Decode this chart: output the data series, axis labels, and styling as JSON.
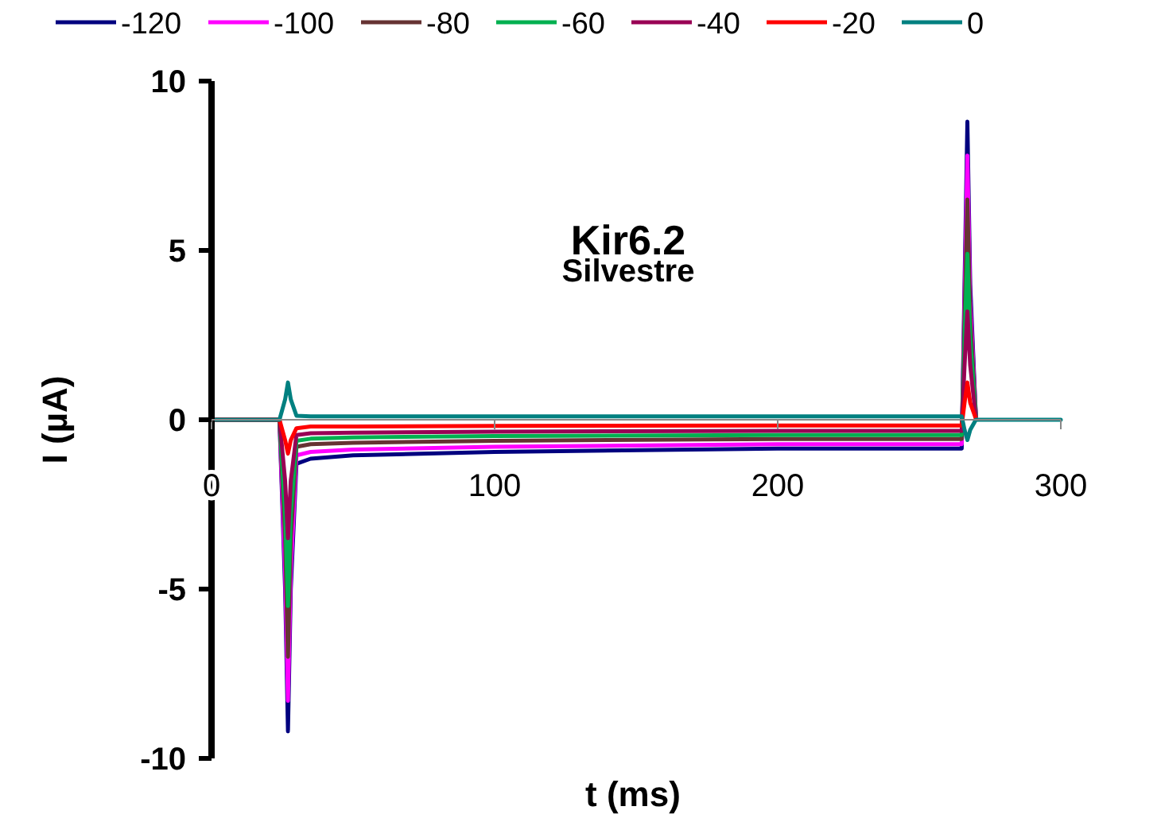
{
  "chart_data": {
    "type": "line",
    "title": "Kir6.2",
    "subtitle": "Silvestre",
    "xlabel": "t (ms)",
    "ylabel": "I (µA)",
    "legend": "top",
    "grid": false,
    "marker": "none",
    "line_style": "solid",
    "x": [
      0,
      24,
      26,
      27,
      28,
      30,
      35,
      50,
      100,
      200,
      265,
      266,
      267,
      268,
      270,
      280,
      300
    ],
    "xlim": [
      0,
      300
    ],
    "xticks": [
      0,
      100,
      200,
      300
    ],
    "ylim": [
      -10,
      10
    ],
    "yticks": [
      -10,
      -5,
      0,
      5,
      10
    ],
    "series": [
      {
        "name": "-120",
        "color": "#00007f",
        "values": [
          0,
          0,
          -5,
          -9.2,
          -5,
          -1.3,
          -1.15,
          -1.05,
          -0.95,
          -0.85,
          -0.85,
          4,
          8.8,
          4,
          0.1,
          null,
          null
        ]
      },
      {
        "name": "-100",
        "color": "#ff00ff",
        "values": [
          0,
          0,
          -4.5,
          -8.3,
          -4.5,
          -1.05,
          -0.95,
          -0.88,
          -0.8,
          -0.72,
          -0.72,
          3.5,
          7.8,
          3.5,
          0.1,
          null,
          null
        ]
      },
      {
        "name": "-80",
        "color": "#663333",
        "values": [
          0,
          0,
          -3.5,
          -7,
          -3.5,
          -0.8,
          -0.72,
          -0.68,
          -0.62,
          -0.57,
          -0.57,
          3,
          6.5,
          3,
          0.1,
          null,
          null
        ]
      },
      {
        "name": "-60",
        "color": "#00b050",
        "values": [
          0,
          0,
          -2.8,
          -5.5,
          -2.8,
          -0.62,
          -0.56,
          -0.52,
          -0.48,
          -0.45,
          -0.45,
          2.4,
          4.9,
          2.4,
          0.1,
          null,
          null
        ]
      },
      {
        "name": "-40",
        "color": "#990055",
        "values": [
          0,
          0,
          -1.8,
          -3.5,
          -1.8,
          -0.45,
          -0.4,
          -0.38,
          -0.35,
          -0.33,
          -0.33,
          1.6,
          3.2,
          1.6,
          0.05,
          null,
          null
        ]
      },
      {
        "name": "-20",
        "color": "#ff0000",
        "values": [
          0,
          0,
          -0.6,
          -1,
          -0.6,
          -0.25,
          -0.2,
          -0.2,
          -0.18,
          -0.17,
          -0.17,
          0.5,
          1.1,
          0.5,
          0.03,
          null,
          null
        ]
      },
      {
        "name": "0",
        "color": "#008080",
        "values": [
          0,
          0,
          0.6,
          1.1,
          0.6,
          0.12,
          0.1,
          0.1,
          0.1,
          0.1,
          0.1,
          -0.3,
          -0.6,
          -0.3,
          0,
          0,
          0
        ]
      }
    ]
  }
}
